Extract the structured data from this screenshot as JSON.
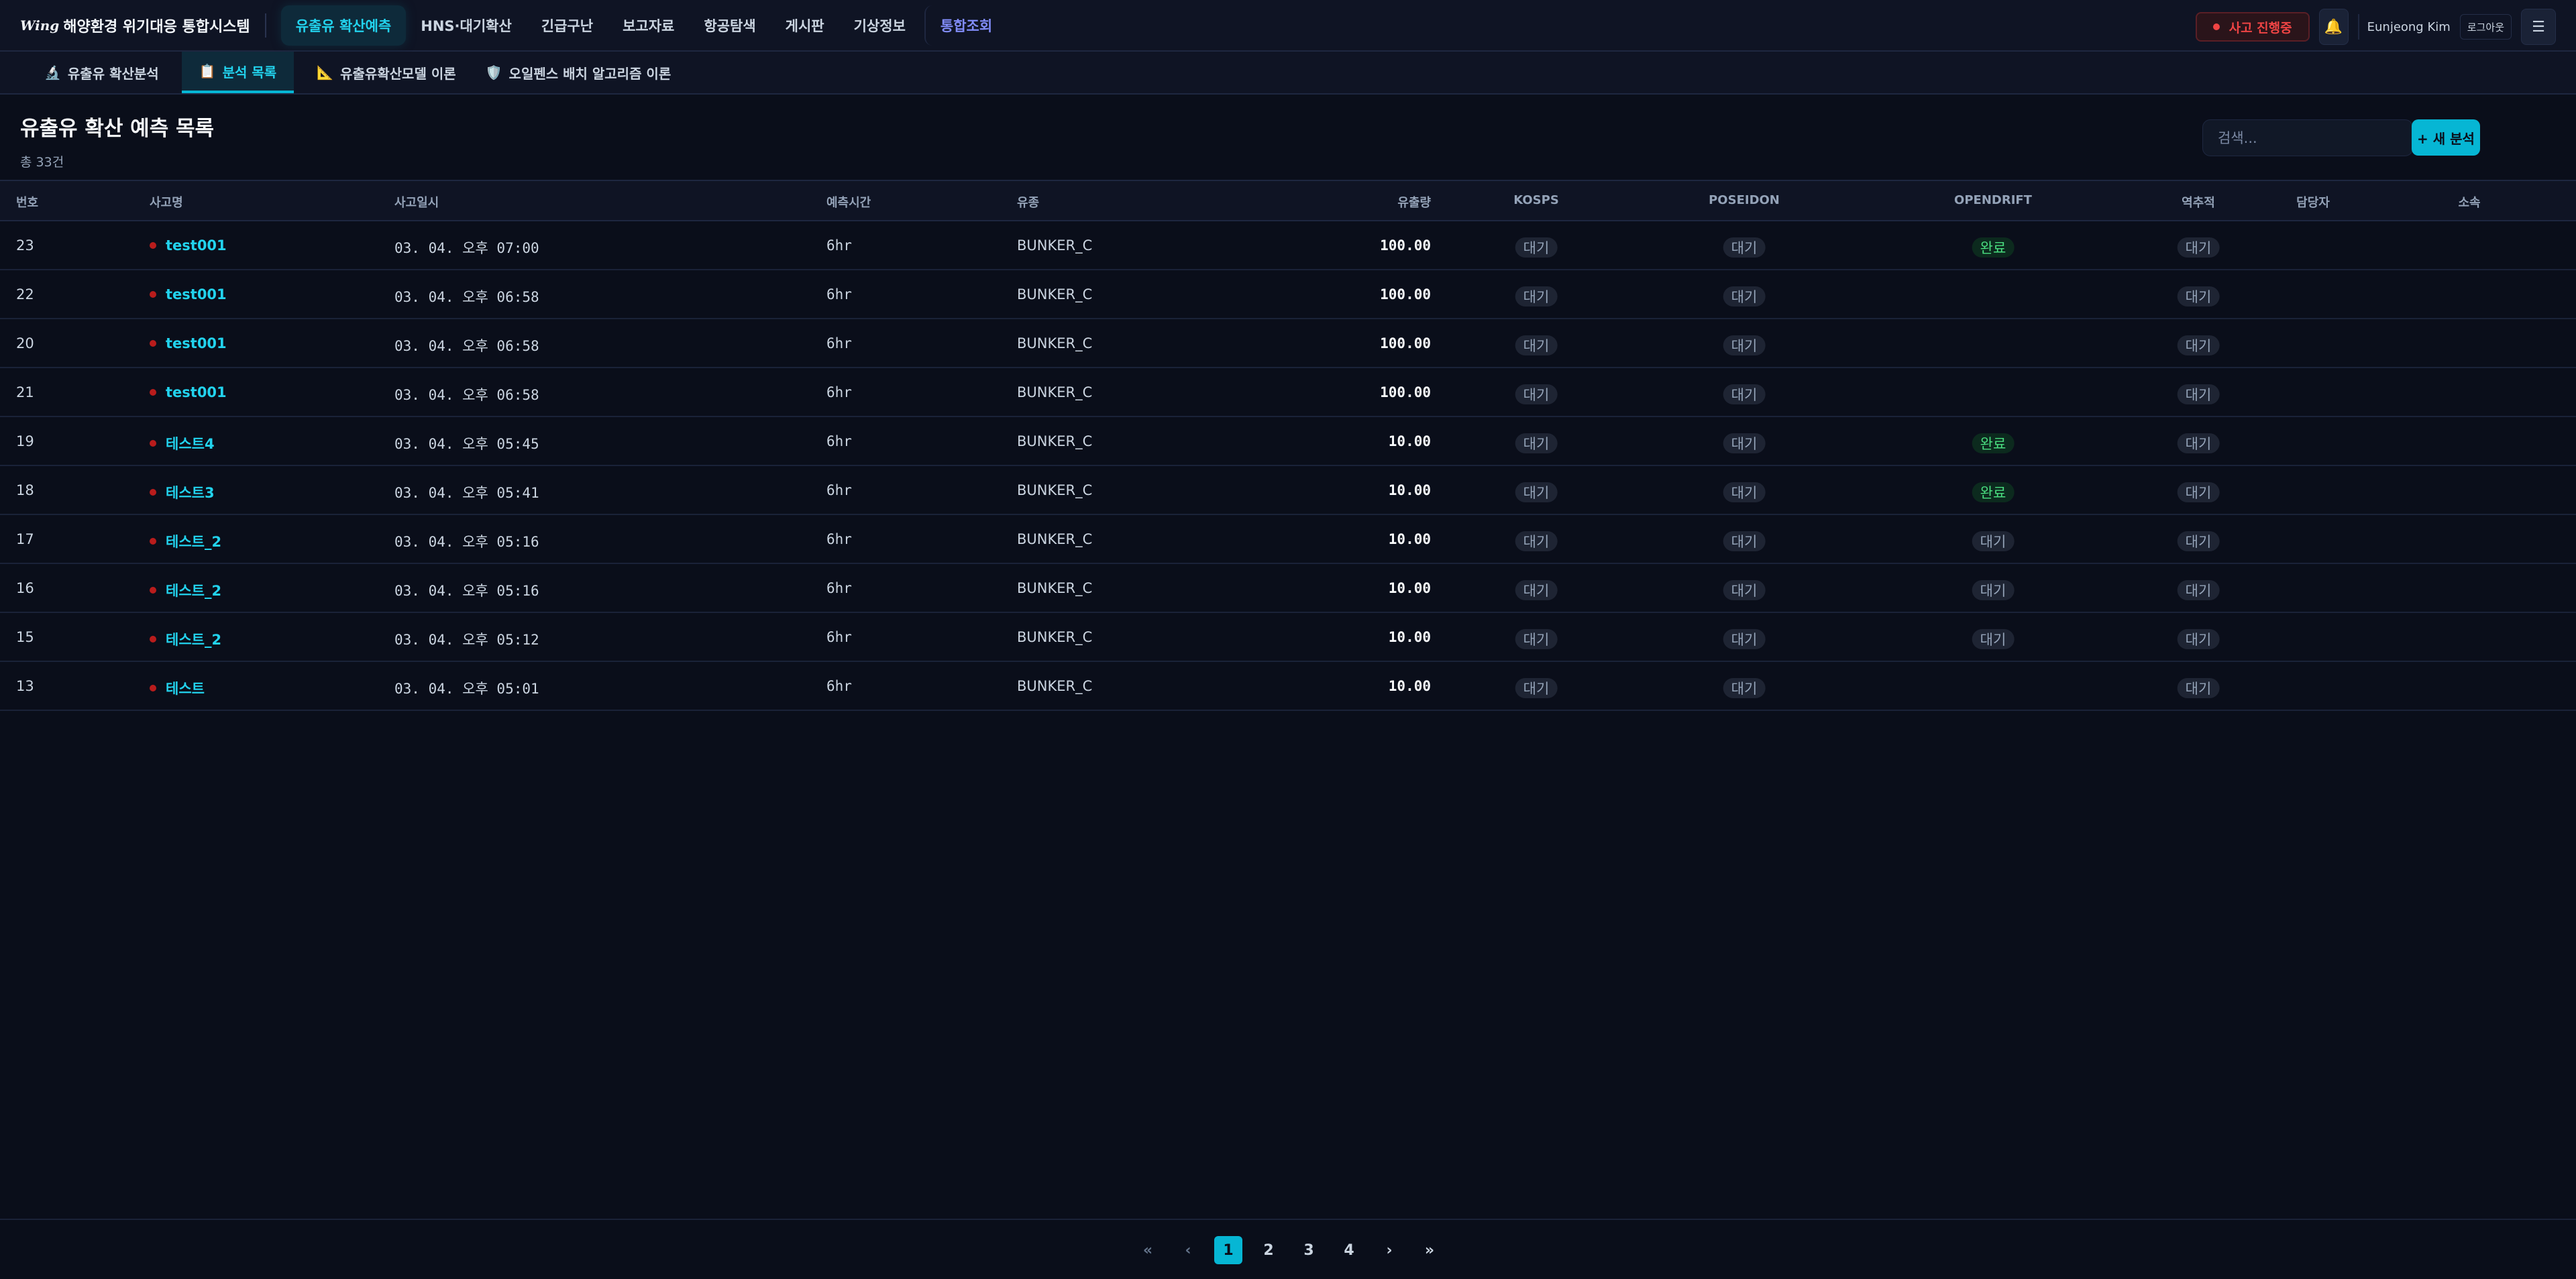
{
  "header": {
    "logo": "Wing",
    "title": "해양환경 위기대응 통합시스템",
    "nav": [
      "유출유 확산예측",
      "HNS·대기확산",
      "긴급구난",
      "보고자료",
      "항공탐색",
      "게시판",
      "기상정보",
      "통합조회"
    ],
    "active_nav": 0,
    "incident_label": "사고 진행중",
    "user_name": "Eunjeong Kim",
    "logout_label": "로그아웃",
    "icons": {
      "bell": "🔔",
      "menu": "☰"
    }
  },
  "subnav": {
    "tabs": [
      {
        "icon": "🔬",
        "label": "유출유 확산분석"
      },
      {
        "icon": "📋",
        "label": "분석 목록"
      },
      {
        "icon": "📐",
        "label": "유출유확산모델 이론"
      },
      {
        "icon": "🛡️",
        "label": "오일펜스 배치 알고리즘 이론"
      }
    ],
    "active": 1
  },
  "page": {
    "title": "유출유 확산 예측 목록",
    "count": "총 33건",
    "search_placeholder": "검색...",
    "new_button": "+ 새 분석"
  },
  "table": {
    "columns": [
      "번호",
      "사고명",
      "사고일시",
      "예측시간",
      "유종",
      "유출량",
      "KOSPS",
      "POSEIDON",
      "OPENDRIFT",
      "역추적",
      "담당자",
      "소속"
    ],
    "rows": [
      {
        "no": "23",
        "name": "test001",
        "date": "03. 04. 오후 07:00",
        "time": "6hr",
        "oil": "BUNKER_C",
        "volume": "100.00",
        "kosps": "대기",
        "poseidon": "대기",
        "opendrift": "완료",
        "backtrack": "대기",
        "manager": "",
        "org": ""
      },
      {
        "no": "22",
        "name": "test001",
        "date": "03. 04. 오후 06:58",
        "time": "6hr",
        "oil": "BUNKER_C",
        "volume": "100.00",
        "kosps": "대기",
        "poseidon": "대기",
        "opendrift": "",
        "backtrack": "대기",
        "manager": "",
        "org": ""
      },
      {
        "no": "20",
        "name": "test001",
        "date": "03. 04. 오후 06:58",
        "time": "6hr",
        "oil": "BUNKER_C",
        "volume": "100.00",
        "kosps": "대기",
        "poseidon": "대기",
        "opendrift": "",
        "backtrack": "대기",
        "manager": "",
        "org": ""
      },
      {
        "no": "21",
        "name": "test001",
        "date": "03. 04. 오후 06:58",
        "time": "6hr",
        "oil": "BUNKER_C",
        "volume": "100.00",
        "kosps": "대기",
        "poseidon": "대기",
        "opendrift": "",
        "backtrack": "대기",
        "manager": "",
        "org": ""
      },
      {
        "no": "19",
        "name": "테스트4",
        "date": "03. 04. 오후 05:45",
        "time": "6hr",
        "oil": "BUNKER_C",
        "volume": "10.00",
        "kosps": "대기",
        "poseidon": "대기",
        "opendrift": "완료",
        "backtrack": "대기",
        "manager": "",
        "org": ""
      },
      {
        "no": "18",
        "name": "테스트3",
        "date": "03. 04. 오후 05:41",
        "time": "6hr",
        "oil": "BUNKER_C",
        "volume": "10.00",
        "kosps": "대기",
        "poseidon": "대기",
        "opendrift": "완료",
        "backtrack": "대기",
        "manager": "",
        "org": ""
      },
      {
        "no": "17",
        "name": "테스트_2",
        "date": "03. 04. 오후 05:16",
        "time": "6hr",
        "oil": "BUNKER_C",
        "volume": "10.00",
        "kosps": "대기",
        "poseidon": "대기",
        "opendrift": "대기",
        "backtrack": "대기",
        "manager": "",
        "org": ""
      },
      {
        "no": "16",
        "name": "테스트_2",
        "date": "03. 04. 오후 05:16",
        "time": "6hr",
        "oil": "BUNKER_C",
        "volume": "10.00",
        "kosps": "대기",
        "poseidon": "대기",
        "opendrift": "대기",
        "backtrack": "대기",
        "manager": "",
        "org": ""
      },
      {
        "no": "15",
        "name": "테스트_2",
        "date": "03. 04. 오후 05:12",
        "time": "6hr",
        "oil": "BUNKER_C",
        "volume": "10.00",
        "kosps": "대기",
        "poseidon": "대기",
        "opendrift": "대기",
        "backtrack": "대기",
        "manager": "",
        "org": ""
      },
      {
        "no": "13",
        "name": "테스트",
        "date": "03. 04. 오후 05:01",
        "time": "6hr",
        "oil": "BUNKER_C",
        "volume": "10.00",
        "kosps": "대기",
        "poseidon": "대기",
        "opendrift": "",
        "backtrack": "대기",
        "manager": "",
        "org": ""
      }
    ]
  },
  "pagination": {
    "first": "«",
    "prev": "‹",
    "pages": [
      "1",
      "2",
      "3",
      "4"
    ],
    "current": "1",
    "next": "›",
    "last": "»"
  },
  "colors": {
    "accent": "#06b6d4",
    "done": "#4ade80",
    "incident": "#ef4444",
    "background": "#0a0e1a"
  }
}
